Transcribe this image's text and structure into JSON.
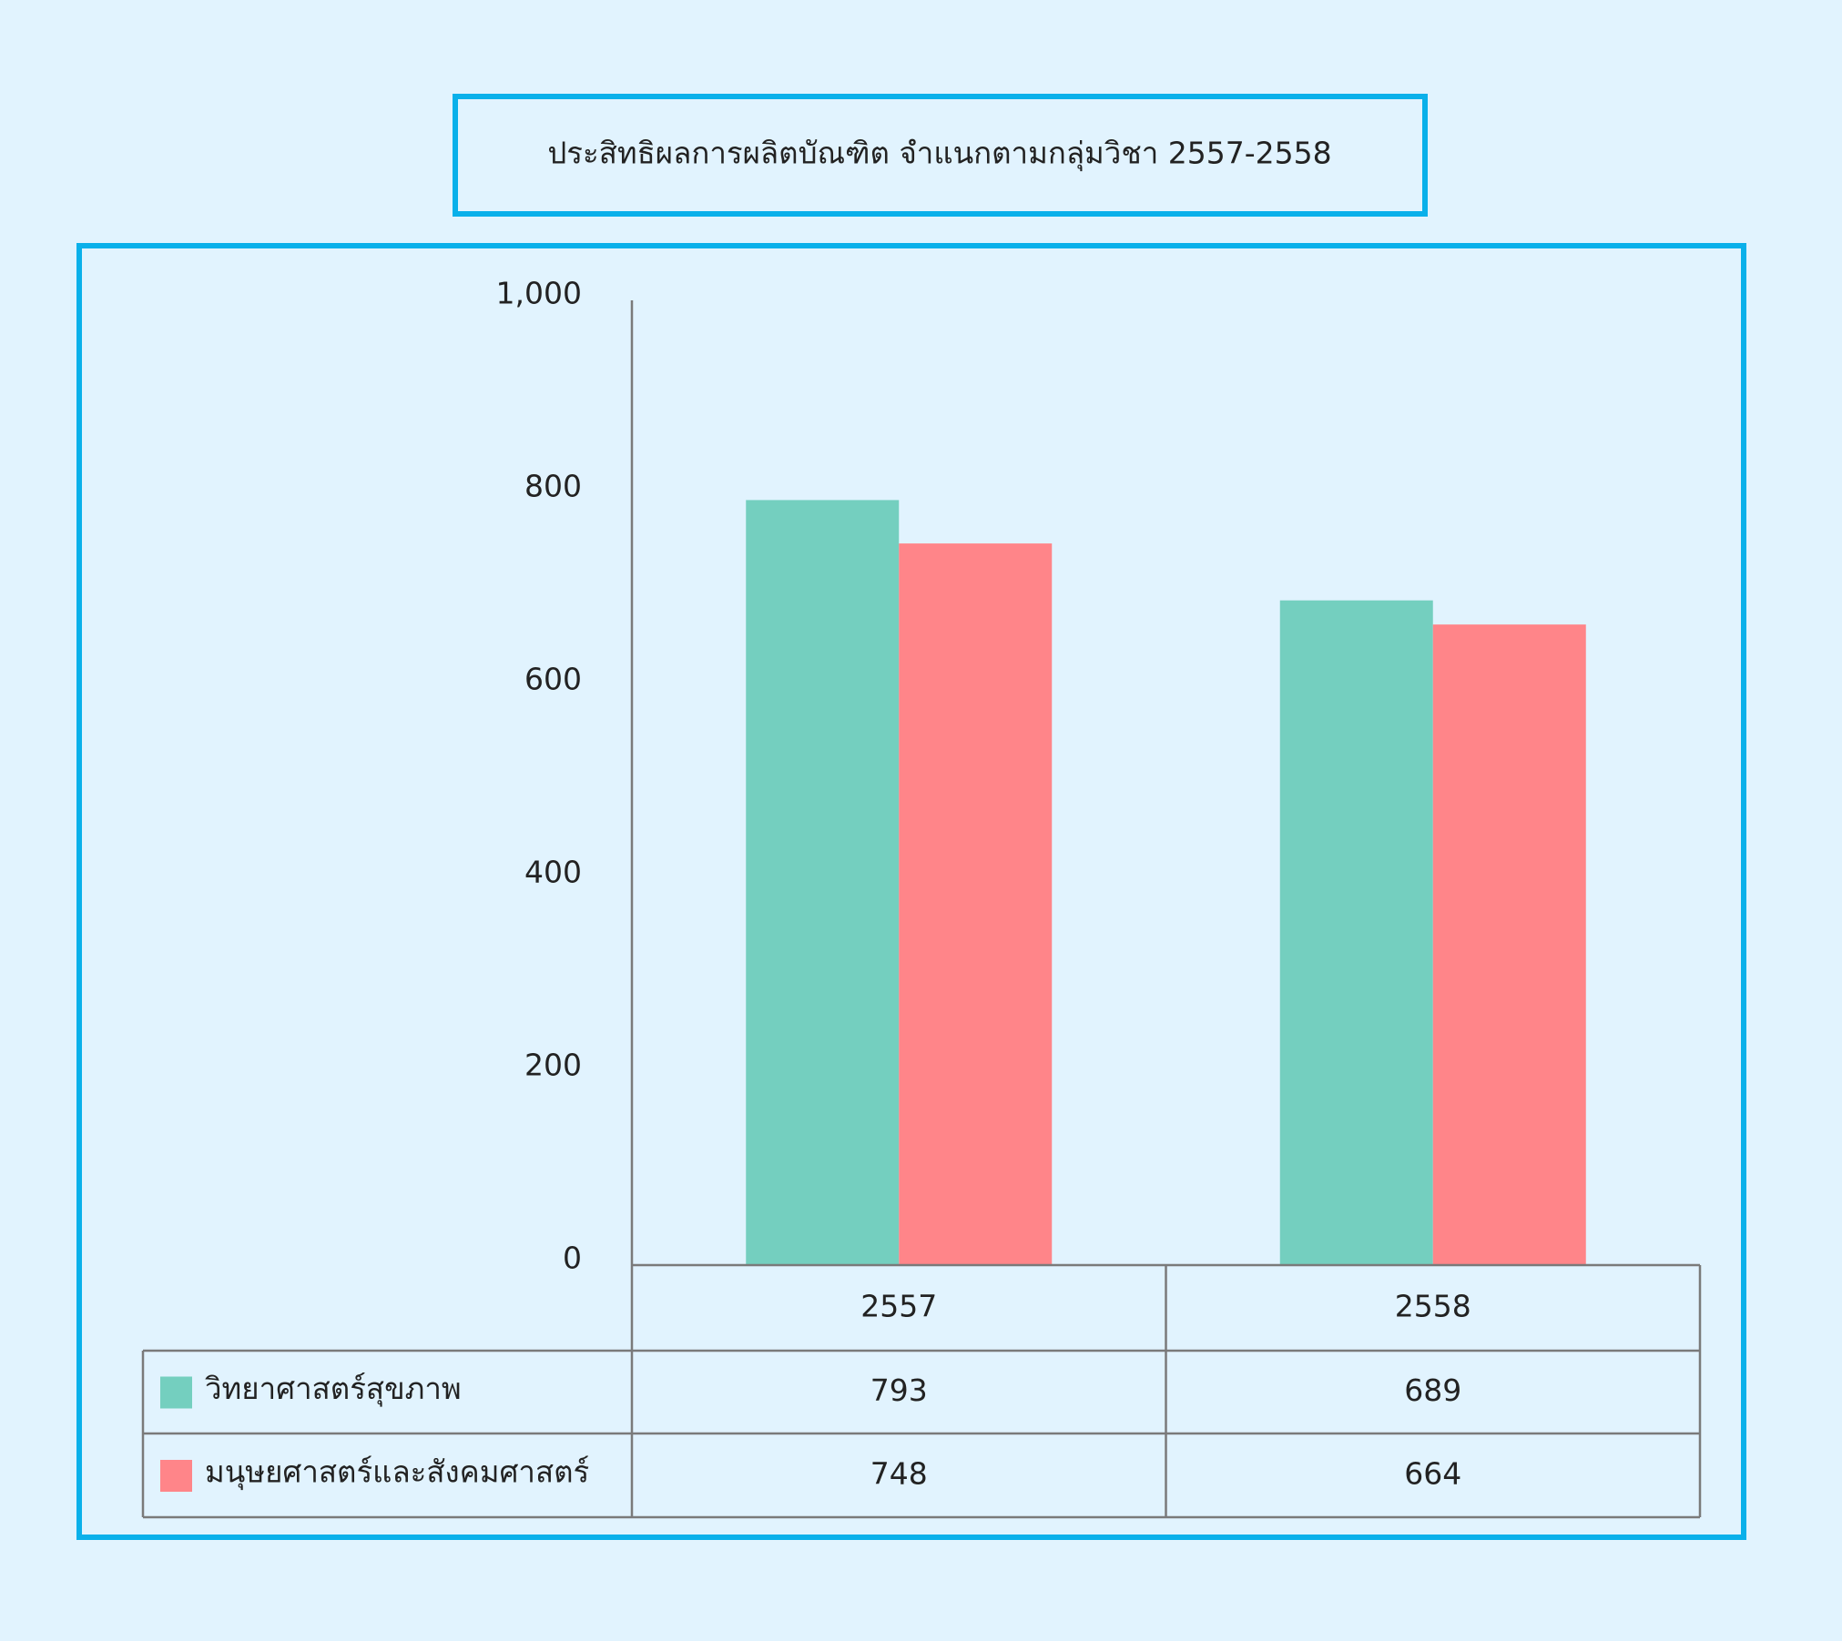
{
  "chart_data": {
    "type": "bar",
    "title": "ประสิทธิผลการผลิตบัณฑิต จำแนกตามกลุ่มวิชา 2557-2558",
    "categories": [
      "2557",
      "2558"
    ],
    "series": [
      {
        "name": "วิทยาศาสตร์สุขภาพ",
        "color": "#74cfbf",
        "values": [
          793,
          689
        ]
      },
      {
        "name": "มนุษยศาสตร์และสังคมศาสตร์",
        "color": "#ff8589",
        "values": [
          748,
          664
        ]
      }
    ],
    "ylim": [
      0,
      1000
    ],
    "yticks": [
      0,
      200,
      400,
      600,
      800,
      {
        "value": 1000,
        "label": "1,000"
      }
    ],
    "grid": false
  }
}
